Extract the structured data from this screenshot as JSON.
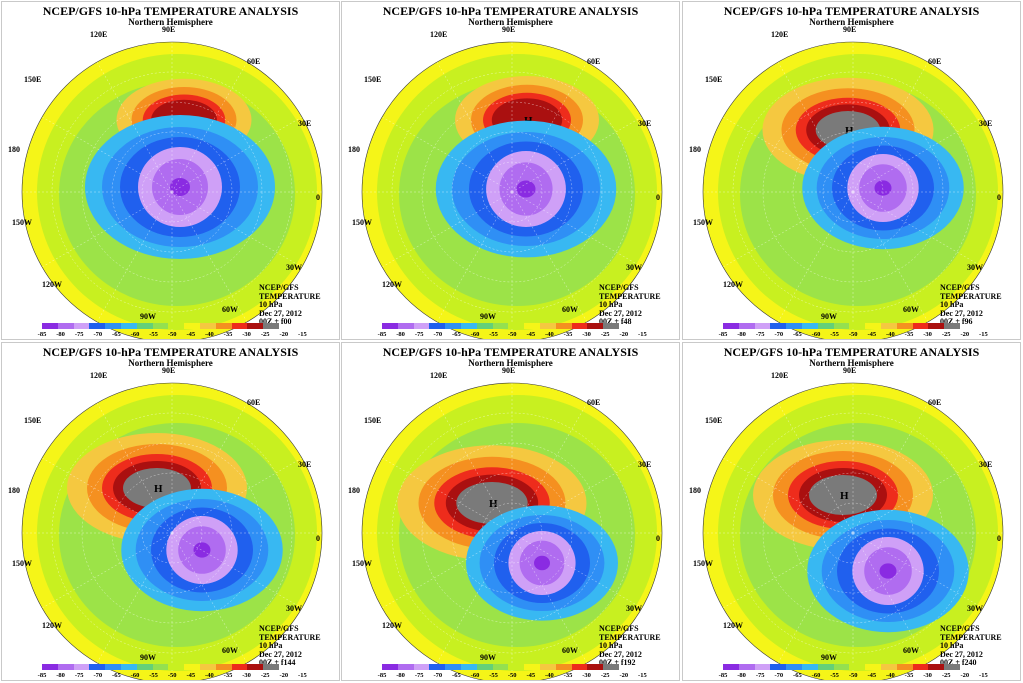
{
  "common": {
    "title": "NCEP/GFS 10-hPa TEMPERATURE ANALYSIS",
    "subtitle": "Northern Hemisphere",
    "info_lines": [
      "NCEP/GFS",
      "TEMPERATURE",
      "10 hPa",
      "Dec 27, 2012"
    ],
    "longitude_labels": {
      "e120": "120E",
      "e90": "90E",
      "e60": "60E",
      "e150": "150E",
      "e30": "30E",
      "d180": "180",
      "d0": "0",
      "w150": "150W",
      "w30": "30W",
      "w120": "120W",
      "w60": "60W",
      "w90": "90W"
    },
    "colorbar_labels": [
      "-85",
      "-80",
      "-75",
      "-70",
      "-65",
      "-60",
      "-55",
      "-50",
      "-45",
      "-40",
      "-35",
      "-30",
      "-25",
      "-20",
      "-15"
    ],
    "colorbar_colors": [
      "#8a2be2",
      "#b06cf0",
      "#cfa0f7",
      "#2060ee",
      "#2f8ff5",
      "#38b8f2",
      "#64d078",
      "#94e050",
      "#c8f020",
      "#f5f518",
      "#f5c840",
      "#f59020",
      "#ee2c1c",
      "#aa1010",
      "#7a7a7a"
    ],
    "high_label": "H"
  },
  "panels": [
    {
      "forecast": "00Z + f00"
    },
    {
      "forecast": "00Z + f48"
    },
    {
      "forecast": "00Z + f96"
    },
    {
      "forecast": "00Z + f144"
    },
    {
      "forecast": "00Z + f192"
    },
    {
      "forecast": "00Z + f240"
    }
  ]
}
